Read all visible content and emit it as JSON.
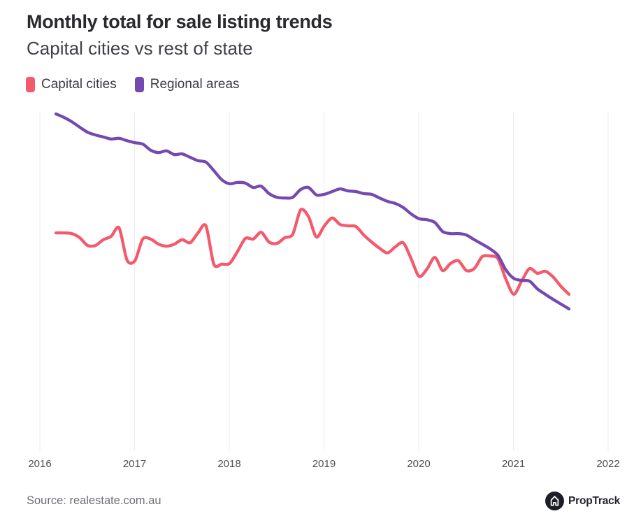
{
  "header": {
    "title": "Monthly total for sale listing trends",
    "subtitle": "Capital cities vs rest of state"
  },
  "chart_data": {
    "type": "line",
    "title": "Monthly total for sale listing trends",
    "subtitle": "Capital cities vs rest of state",
    "x_ticks": [
      2016,
      2017,
      2018,
      2019,
      2020,
      2021,
      2022
    ],
    "x_tick_labels": [
      "2016",
      "2017",
      "2018",
      "2019",
      "2020",
      "2021",
      "2022"
    ],
    "x_range": [
      2015.95,
      2022.15
    ],
    "y_axis_labeled": false,
    "y_scale_note": "Relative level 0-100 read from plot; the source chart shows no y-axis tick labels",
    "y_range": [
      0,
      100
    ],
    "grid": "vertical-only",
    "legend_position": "top-left",
    "series": [
      {
        "name": "Capital cities",
        "color": "#F4596C",
        "x_start_year": 2016.17,
        "step_months": 1,
        "values": [
          64.3,
          64.3,
          64.1,
          62.9,
          60.6,
          60.6,
          62.3,
          63.3,
          65.8,
          56.3,
          56.1,
          62.5,
          62.5,
          61.0,
          60.4,
          61.0,
          62.3,
          61.4,
          64.3,
          66.4,
          55.1,
          55.1,
          55.3,
          58.8,
          62.7,
          62.5,
          64.5,
          61.6,
          61.2,
          62.9,
          63.9,
          71.1,
          69.1,
          63.1,
          66.4,
          68.7,
          66.8,
          66.4,
          66.2,
          63.7,
          61.6,
          59.8,
          58.4,
          60.2,
          61.4,
          56.7,
          51.5,
          53.6,
          57.1,
          53.2,
          55.3,
          56.1,
          53.2,
          53.8,
          57.3,
          57.5,
          56.7,
          50.7,
          46.2,
          50.1,
          53.8,
          52.4,
          53.0,
          51.3,
          48.5,
          46.2
        ]
      },
      {
        "name": "Regional areas",
        "color": "#7549B0",
        "x_start_year": 2016.17,
        "step_months": 1,
        "values": [
          99.4,
          98.4,
          97.1,
          95.5,
          94.0,
          93.2,
          92.6,
          92.0,
          92.2,
          91.5,
          90.9,
          90.5,
          88.7,
          88.0,
          88.5,
          87.4,
          87.6,
          86.6,
          85.6,
          85.2,
          82.7,
          80.0,
          78.8,
          79.2,
          79.0,
          77.7,
          78.1,
          75.9,
          74.8,
          74.6,
          74.8,
          77.1,
          77.7,
          75.5,
          75.7,
          76.5,
          77.3,
          76.7,
          76.5,
          75.9,
          75.7,
          74.6,
          73.6,
          73.0,
          71.8,
          69.9,
          68.5,
          68.2,
          67.4,
          64.7,
          64.1,
          64.1,
          63.7,
          62.3,
          61.0,
          59.6,
          57.7,
          53.4,
          50.9,
          50.3,
          50.1,
          47.8,
          46.2,
          44.7,
          43.3,
          41.9
        ]
      }
    ]
  },
  "footer": {
    "source": "Source: realestate.com.au",
    "brand": "PropTrack"
  },
  "colors": {
    "capital_cities": "#F4596C",
    "regional_areas": "#7549B0",
    "grid": "#EBEBEB",
    "title": "#29292E",
    "subtitle": "#404047",
    "tick": "#4E4E55",
    "source": "#6F6F78",
    "logo_circle": "#1D1D27"
  }
}
